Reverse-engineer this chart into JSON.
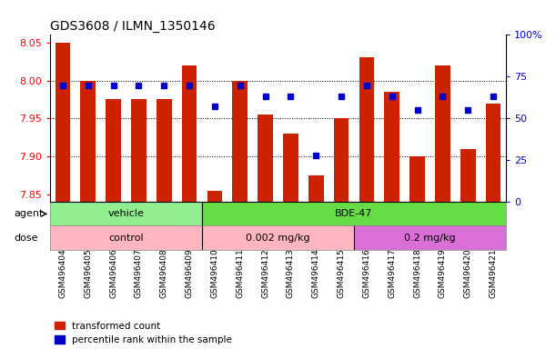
{
  "title": "GDS3608 / ILMN_1350146",
  "samples": [
    "GSM496404",
    "GSM496405",
    "GSM496406",
    "GSM496407",
    "GSM496408",
    "GSM496409",
    "GSM496410",
    "GSM496411",
    "GSM496412",
    "GSM496413",
    "GSM496414",
    "GSM496415",
    "GSM496416",
    "GSM496417",
    "GSM496418",
    "GSM496419",
    "GSM496420",
    "GSM496421"
  ],
  "red_values": [
    8.05,
    8.0,
    7.975,
    7.975,
    7.975,
    8.02,
    7.855,
    8.0,
    7.955,
    7.93,
    7.875,
    7.95,
    8.03,
    7.985,
    7.9,
    8.02,
    7.91,
    7.97
  ],
  "blue_percentiles": [
    70,
    70,
    70,
    70,
    70,
    70,
    57,
    70,
    63,
    63,
    28,
    63,
    70,
    63,
    55,
    63,
    55,
    63
  ],
  "ymin": 7.84,
  "ymax": 8.06,
  "yticks": [
    7.85,
    7.9,
    7.95,
    8.0,
    8.05
  ],
  "right_yticks": [
    0,
    25,
    50,
    75,
    100
  ],
  "right_yticklabels": [
    "0",
    "25",
    "50",
    "75",
    "100%"
  ],
  "bar_color": "#CC2200",
  "blue_color": "#0000CC",
  "agent_vehicle_color": "#90EE90",
  "agent_bde47_color": "#66DD44",
  "dose_control_color": "#FFB6C1",
  "dose_002_color": "#FFB6C1",
  "dose_02_color": "#DA70D6",
  "bar_bottom": 7.84
}
